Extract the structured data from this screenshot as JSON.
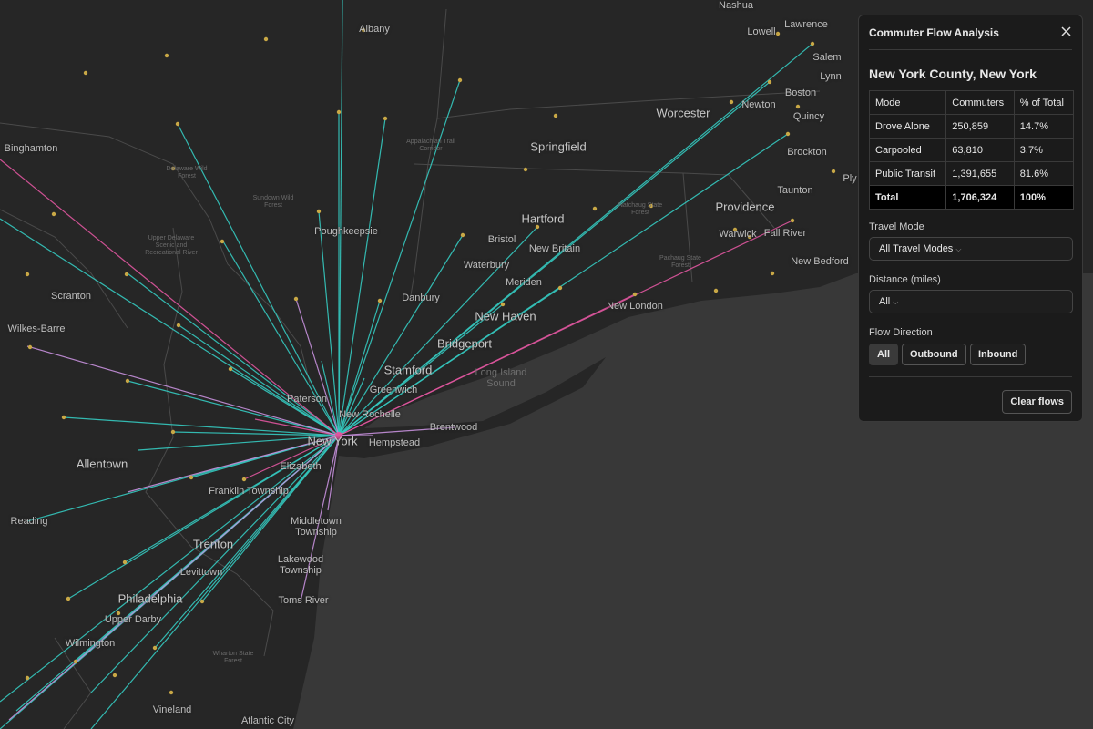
{
  "map": {
    "labels": [
      "Nashua",
      "Lawrence",
      "Lowell",
      "Salem",
      "Lynn",
      "Boston",
      "Newton",
      "Quincy",
      "Worcester",
      "Brockton",
      "Ply",
      "Taunton",
      "Providence",
      "Warwick",
      "Fall River",
      "New Bedford",
      "Albany",
      "Binghamton",
      "Springfield",
      "Hartford",
      "Bristol",
      "New Britain",
      "Waterbury",
      "Meriden",
      "New Haven",
      "New London",
      "Danbury",
      "Poughkeepsie",
      "Scranton",
      "Wilkes-Barre",
      "Bridgeport",
      "Stamford",
      "Greenwich",
      "Paterson",
      "New Rochelle",
      "Brentwood",
      "New York",
      "Hempstead",
      "Elizabeth",
      "Allentown",
      "Franklin Township",
      "Reading",
      "Middletown Township",
      "Trenton",
      "Levittown",
      "Lakewood Township",
      "Philadelphia",
      "Toms River",
      "Upper Darby",
      "Wilmington",
      "Vineland",
      "Atlantic City"
    ],
    "area_labels": [
      "Long Island Sound",
      "Delaware Wild Forest",
      "Sundown Wild Forest",
      "Appalachian Trail Corridor",
      "Natchaug State Forest",
      "Pachaug State Forest",
      "Wharton State Forest",
      "Upper Delaware Scenic and Recreational River"
    ]
  },
  "panel": {
    "title": "Commuter Flow Analysis",
    "county": "New York County, New York",
    "table": {
      "header": [
        "Mode",
        "Commuters",
        "% of Total"
      ],
      "rows": [
        [
          "Drove Alone",
          "250,859",
          "14.7%"
        ],
        [
          "Carpooled",
          "63,810",
          "3.7%"
        ],
        [
          "Public Transit",
          "1,391,655",
          "81.6%"
        ]
      ],
      "total": [
        "Total",
        "1,706,324",
        "100%"
      ]
    },
    "travel_mode_label": "Travel Mode",
    "travel_mode_value": "All Travel Modes",
    "distance_label": "Distance (miles)",
    "distance_value": "All",
    "flow_direction_label": "Flow Direction",
    "flow_direction_options": [
      "All",
      "Outbound",
      "Inbound"
    ],
    "clear_button": "Clear flows"
  }
}
